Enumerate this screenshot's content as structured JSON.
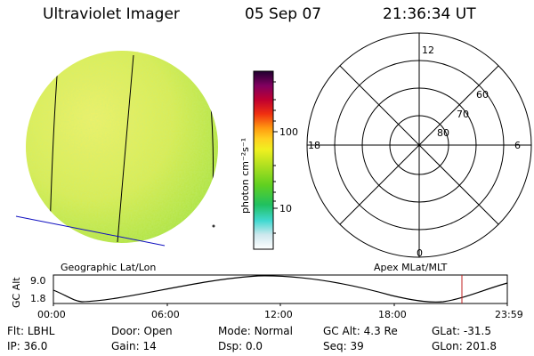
{
  "header": {
    "app_title": "Ultraviolet Imager",
    "date": "05 Sep 07",
    "time": "21:36:34 UT"
  },
  "colorbar": {
    "unit_label": "photon cm⁻²s⁻¹",
    "tick_labels": [
      "100",
      "10"
    ]
  },
  "polar_plot": {
    "mlt_labels": {
      "top": "12",
      "left": "18",
      "right": "6",
      "bottom": "0"
    },
    "lat_labels": [
      "60",
      "70",
      "80"
    ]
  },
  "panel_labels": {
    "left": "Geographic Lat/Lon",
    "right": "Apex MLat/MLT"
  },
  "altitude_plot": {
    "axis_label": "GC Alt",
    "y_ticks": [
      "9.0",
      "1.8"
    ],
    "x_ticks": [
      "00:00",
      "06:00",
      "12:00",
      "18:00",
      "23:59"
    ]
  },
  "status": [
    {
      "key": "Flt:",
      "value": "LBHL"
    },
    {
      "key": "Door:",
      "value": "Open"
    },
    {
      "key": "Mode:",
      "value": "Normal"
    },
    {
      "key": "GC Alt:",
      "value": "4.3 Re"
    },
    {
      "key": "GLat:",
      "value": "-31.5"
    },
    {
      "key": "IP:",
      "value": "36.0"
    },
    {
      "key": "Gain:",
      "value": "14"
    },
    {
      "key": "Dsp:",
      "value": "0.0"
    },
    {
      "key": "Seq:",
      "value": "39"
    },
    {
      "key": "GLon:",
      "value": "201.8"
    }
  ]
}
